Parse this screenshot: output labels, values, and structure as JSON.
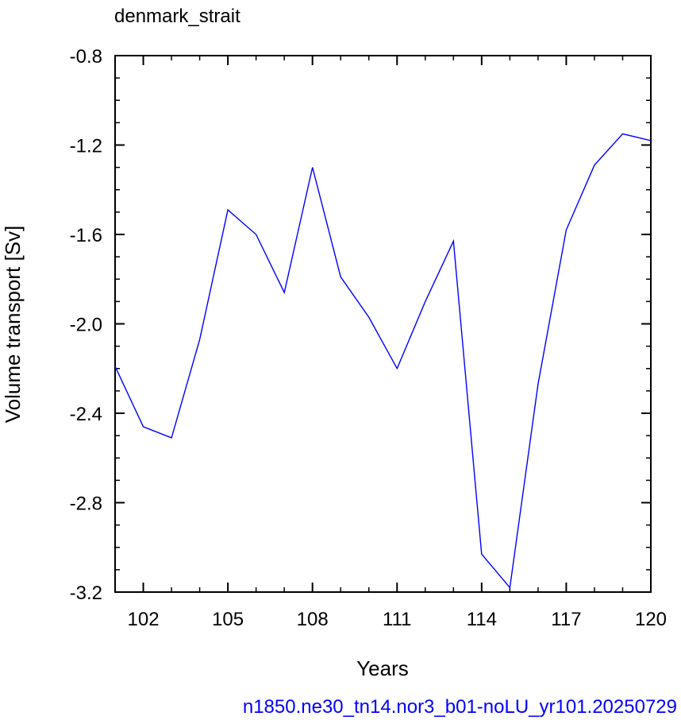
{
  "chart_data": {
    "type": "line",
    "title": "denmark_strait",
    "xlabel": "Years",
    "ylabel": "Volume transport [Sv]",
    "footer": "n1850.ne30_tn14.nor3_b01-noLU_yr101.20250729",
    "xlim": [
      101,
      120
    ],
    "ylim": [
      -3.2,
      -0.8
    ],
    "x_ticks": [
      102,
      105,
      108,
      111,
      114,
      117,
      120
    ],
    "y_ticks": [
      -0.8,
      -1.2,
      -1.6,
      -2.0,
      -2.4,
      -2.8,
      -3.2
    ],
    "x_tick_labels": [
      "102",
      "105",
      "108",
      "111",
      "114",
      "117",
      "120"
    ],
    "y_tick_labels": [
      "-0.8",
      "-1.2",
      "-1.6",
      "-2.0",
      "-2.4",
      "-2.8",
      "-3.2"
    ],
    "grid": false,
    "series": [
      {
        "color": "#0000ff",
        "x": [
          101,
          102,
          103,
          104,
          105,
          106,
          107,
          108,
          109,
          110,
          111,
          112,
          113,
          114,
          115,
          116,
          117,
          118,
          119,
          120
        ],
        "values": [
          -2.19,
          -2.46,
          -2.51,
          -2.07,
          -1.49,
          -1.6,
          -1.86,
          -1.3,
          -1.79,
          -1.97,
          -2.2,
          -1.9,
          -1.63,
          -3.03,
          -3.18,
          -2.27,
          -1.58,
          -1.29,
          -1.15,
          -1.18
        ]
      }
    ]
  }
}
